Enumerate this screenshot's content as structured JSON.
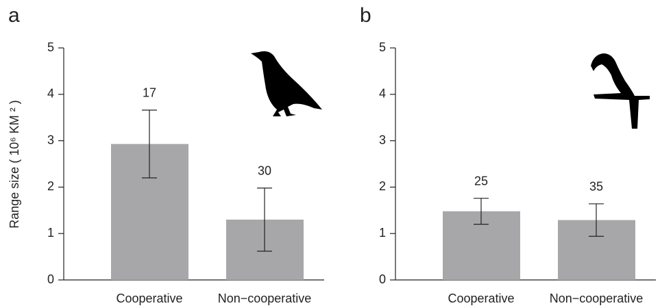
{
  "chart_data": [
    {
      "type": "bar",
      "panel_label": "a",
      "ylabel": "Range size ( 10⁶ KM ² )",
      "categories": [
        "Cooperative",
        "Non−cooperative"
      ],
      "values": [
        2.93,
        1.3
      ],
      "errors": [
        0.73,
        0.68
      ],
      "sample_sizes": [
        17,
        30
      ],
      "color": "#a7a7aa",
      "ylim": [
        0,
        5
      ],
      "yticks": [
        0,
        1,
        2,
        3,
        4,
        5
      ]
    },
    {
      "type": "bar",
      "panel_label": "b",
      "categories": [
        "Cooperative",
        "Non−cooperative"
      ],
      "values": [
        1.48,
        1.29
      ],
      "errors": [
        0.28,
        0.35
      ],
      "sample_sizes": [
        25,
        35
      ],
      "color": "#a7a7aa",
      "ylim": [
        0,
        5
      ],
      "yticks": [
        0,
        1,
        2,
        3,
        4,
        5
      ]
    }
  ]
}
